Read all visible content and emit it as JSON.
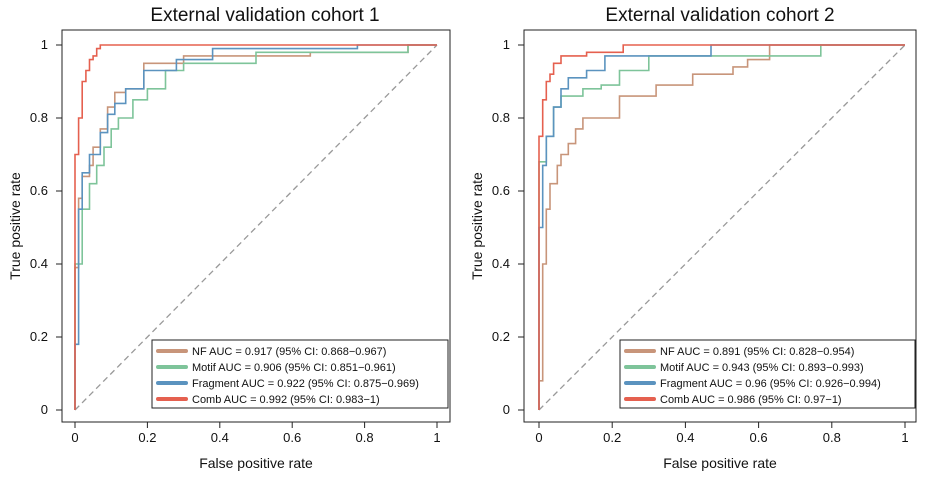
{
  "colors": {
    "NF": "#C8957A",
    "Motif": "#7EC49A",
    "Fragment": "#5B93BF",
    "Comb": "#E5604F",
    "diagonal": "#999999",
    "axis": "#222222"
  },
  "chart_data": [
    {
      "type": "line",
      "title": "External validation cohort 1",
      "xlabel": "False positive rate",
      "ylabel": "True positive rate",
      "xlim": [
        0,
        1
      ],
      "ylim": [
        0,
        1
      ],
      "xticks": [
        "0",
        "0.2",
        "0.4",
        "0.6",
        "0.8",
        "1"
      ],
      "yticks": [
        "0",
        "0.2",
        "0.4",
        "0.6",
        "0.8",
        "1"
      ],
      "reference_line": "diagonal",
      "legend_position": "bottom-right",
      "series": [
        {
          "name": "NF",
          "label": "NF AUC = 0.917 (95% CI: 0.868−0.967)",
          "x": [
            0,
            0,
            0.01,
            0.01,
            0.02,
            0.02,
            0.04,
            0.04,
            0.05,
            0.05,
            0.07,
            0.07,
            0.09,
            0.09,
            0.11,
            0.11,
            0.14,
            0.14,
            0.19,
            0.19,
            0.3,
            0.3,
            0.65,
            0.65,
            0.92,
            0.92,
            1
          ],
          "y": [
            0,
            0.39,
            0.39,
            0.58,
            0.58,
            0.64,
            0.64,
            0.67,
            0.67,
            0.72,
            0.72,
            0.77,
            0.77,
            0.83,
            0.83,
            0.87,
            0.87,
            0.88,
            0.88,
            0.95,
            0.95,
            0.97,
            0.97,
            0.98,
            0.98,
            1,
            1
          ]
        },
        {
          "name": "Motif",
          "label": "Motif AUC = 0.906 (95% CI: 0.851−0.961)",
          "x": [
            0,
            0,
            0.02,
            0.02,
            0.04,
            0.04,
            0.06,
            0.06,
            0.08,
            0.08,
            0.1,
            0.1,
            0.12,
            0.12,
            0.16,
            0.16,
            0.2,
            0.2,
            0.25,
            0.25,
            0.3,
            0.3,
            0.5,
            0.5,
            0.92,
            0.92,
            1
          ],
          "y": [
            0,
            0.4,
            0.4,
            0.55,
            0.55,
            0.62,
            0.62,
            0.67,
            0.67,
            0.72,
            0.72,
            0.77,
            0.77,
            0.8,
            0.8,
            0.85,
            0.85,
            0.88,
            0.88,
            0.93,
            0.93,
            0.95,
            0.95,
            0.98,
            0.98,
            1,
            1
          ]
        },
        {
          "name": "Fragment",
          "label": "Fragment AUC = 0.922 (95% CI: 0.875−0.969)",
          "x": [
            0,
            0,
            0.01,
            0.01,
            0.02,
            0.02,
            0.04,
            0.04,
            0.07,
            0.07,
            0.09,
            0.09,
            0.11,
            0.11,
            0.14,
            0.14,
            0.19,
            0.19,
            0.28,
            0.28,
            0.38,
            0.38,
            0.78,
            0.78,
            1
          ],
          "y": [
            0,
            0.18,
            0.18,
            0.55,
            0.55,
            0.65,
            0.65,
            0.7,
            0.7,
            0.76,
            0.76,
            0.81,
            0.81,
            0.84,
            0.84,
            0.88,
            0.88,
            0.93,
            0.93,
            0.96,
            0.96,
            0.99,
            0.99,
            1,
            1
          ]
        },
        {
          "name": "Comb",
          "label": "Comb AUC = 0.992 (95% CI: 0.983−1)",
          "x": [
            0,
            0,
            0.01,
            0.01,
            0.02,
            0.02,
            0.03,
            0.03,
            0.04,
            0.04,
            0.05,
            0.05,
            0.06,
            0.06,
            0.07,
            0.07,
            1
          ],
          "y": [
            0,
            0.7,
            0.7,
            0.8,
            0.8,
            0.9,
            0.9,
            0.93,
            0.93,
            0.96,
            0.96,
            0.97,
            0.97,
            0.99,
            0.99,
            1,
            1
          ]
        }
      ]
    },
    {
      "type": "line",
      "title": "External validation cohort 2",
      "xlabel": "False positive rate",
      "ylabel": "True positive rate",
      "xlim": [
        0,
        1
      ],
      "ylim": [
        0,
        1
      ],
      "xticks": [
        "0",
        "0.2",
        "0.4",
        "0.6",
        "0.8",
        "1"
      ],
      "yticks": [
        "0",
        "0.2",
        "0.4",
        "0.6",
        "0.8",
        "1"
      ],
      "reference_line": "diagonal",
      "legend_position": "bottom-right",
      "series": [
        {
          "name": "NF",
          "label": "NF AUC = 0.891 (95% CI: 0.828−0.954)",
          "x": [
            0,
            0,
            0.01,
            0.01,
            0.02,
            0.02,
            0.03,
            0.03,
            0.05,
            0.05,
            0.06,
            0.06,
            0.08,
            0.08,
            0.1,
            0.1,
            0.12,
            0.12,
            0.22,
            0.22,
            0.32,
            0.32,
            0.42,
            0.42,
            0.53,
            0.53,
            0.57,
            0.57,
            0.63,
            0.63,
            1
          ],
          "y": [
            0,
            0.08,
            0.08,
            0.4,
            0.4,
            0.55,
            0.55,
            0.62,
            0.62,
            0.67,
            0.67,
            0.7,
            0.7,
            0.73,
            0.73,
            0.77,
            0.77,
            0.8,
            0.8,
            0.86,
            0.86,
            0.89,
            0.89,
            0.92,
            0.92,
            0.94,
            0.94,
            0.96,
            0.96,
            1,
            1
          ]
        },
        {
          "name": "Motif",
          "label": "Motif AUC = 0.943 (95% CI: 0.893−0.993)",
          "x": [
            0,
            0,
            0.02,
            0.02,
            0.04,
            0.04,
            0.06,
            0.06,
            0.12,
            0.12,
            0.17,
            0.17,
            0.22,
            0.22,
            0.3,
            0.3,
            0.77,
            0.77,
            1
          ],
          "y": [
            0,
            0.68,
            0.68,
            0.75,
            0.75,
            0.83,
            0.83,
            0.86,
            0.86,
            0.88,
            0.88,
            0.89,
            0.89,
            0.93,
            0.93,
            0.97,
            0.97,
            1,
            1
          ]
        },
        {
          "name": "Fragment",
          "label": "Fragment AUC = 0.96 (95% CI: 0.926−0.994)",
          "x": [
            0,
            0,
            0.01,
            0.01,
            0.02,
            0.02,
            0.04,
            0.04,
            0.06,
            0.06,
            0.08,
            0.08,
            0.13,
            0.13,
            0.18,
            0.18,
            0.47,
            0.47,
            1
          ],
          "y": [
            0,
            0.5,
            0.5,
            0.67,
            0.67,
            0.75,
            0.75,
            0.83,
            0.83,
            0.88,
            0.88,
            0.91,
            0.91,
            0.93,
            0.93,
            0.97,
            0.97,
            1,
            1
          ]
        },
        {
          "name": "Comb",
          "label": "Comb AUC = 0.986 (95% CI: 0.97−1)",
          "x": [
            0,
            0,
            0.01,
            0.01,
            0.02,
            0.02,
            0.03,
            0.03,
            0.04,
            0.04,
            0.06,
            0.06,
            0.13,
            0.13,
            0.23,
            0.23,
            1
          ],
          "y": [
            0,
            0.75,
            0.75,
            0.85,
            0.85,
            0.9,
            0.9,
            0.92,
            0.92,
            0.95,
            0.95,
            0.97,
            0.97,
            0.98,
            0.98,
            1,
            1
          ]
        }
      ]
    }
  ]
}
